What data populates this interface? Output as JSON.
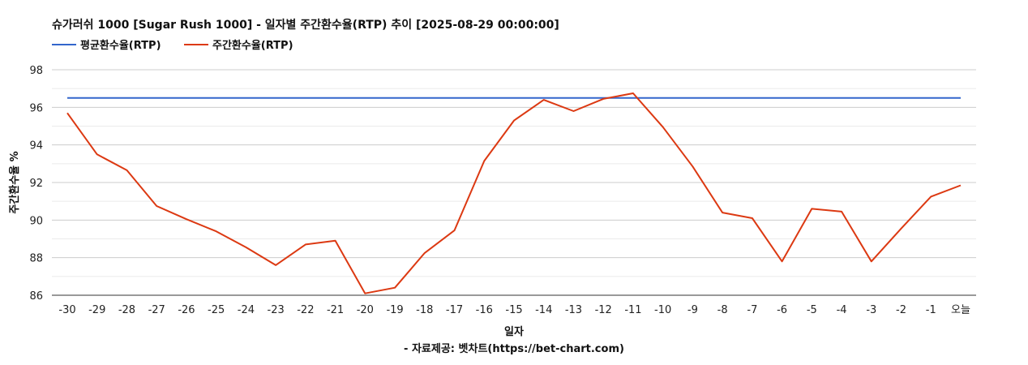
{
  "chart_data": {
    "type": "line",
    "title": "슈가러쉬 1000 [Sugar Rush 1000] - 일자별 주간환수율(RTP) 추이 [2025-08-29 00:00:00]",
    "xlabel": "일자",
    "ylabel": "주간환수율 %",
    "source": "- 자료제공: 벳차트(https://bet-chart.com)",
    "categories": [
      "-30",
      "-29",
      "-28",
      "-27",
      "-26",
      "-25",
      "-24",
      "-23",
      "-22",
      "-21",
      "-20",
      "-19",
      "-18",
      "-17",
      "-16",
      "-15",
      "-14",
      "-13",
      "-12",
      "-11",
      "-10",
      "-9",
      "-8",
      "-7",
      "-6",
      "-5",
      "-4",
      "-3",
      "-2",
      "-1",
      "오늘"
    ],
    "ylim": [
      86,
      98
    ],
    "yticks": [
      86,
      88,
      90,
      92,
      94,
      96,
      98
    ],
    "grid": true,
    "legend_position": "top-left",
    "series": [
      {
        "name": "평균환수율(RTP)",
        "color": "#3366cc",
        "values": [
          96.5,
          96.5,
          96.5,
          96.5,
          96.5,
          96.5,
          96.5,
          96.5,
          96.5,
          96.5,
          96.5,
          96.5,
          96.5,
          96.5,
          96.5,
          96.5,
          96.5,
          96.5,
          96.5,
          96.5,
          96.5,
          96.5,
          96.5,
          96.5,
          96.5,
          96.5,
          96.5,
          96.5,
          96.5,
          96.5,
          96.5
        ]
      },
      {
        "name": "주간환수율(RTP)",
        "color": "#dc3912",
        "values": [
          95.7,
          93.5,
          92.65,
          90.75,
          90.05,
          89.4,
          88.55,
          87.6,
          88.7,
          88.9,
          86.1,
          86.4,
          88.25,
          89.45,
          93.15,
          95.3,
          96.4,
          95.8,
          96.45,
          96.75,
          94.95,
          92.85,
          90.4,
          90.1,
          87.8,
          90.6,
          90.45,
          87.8,
          89.55,
          91.25,
          91.85
        ]
      }
    ]
  }
}
